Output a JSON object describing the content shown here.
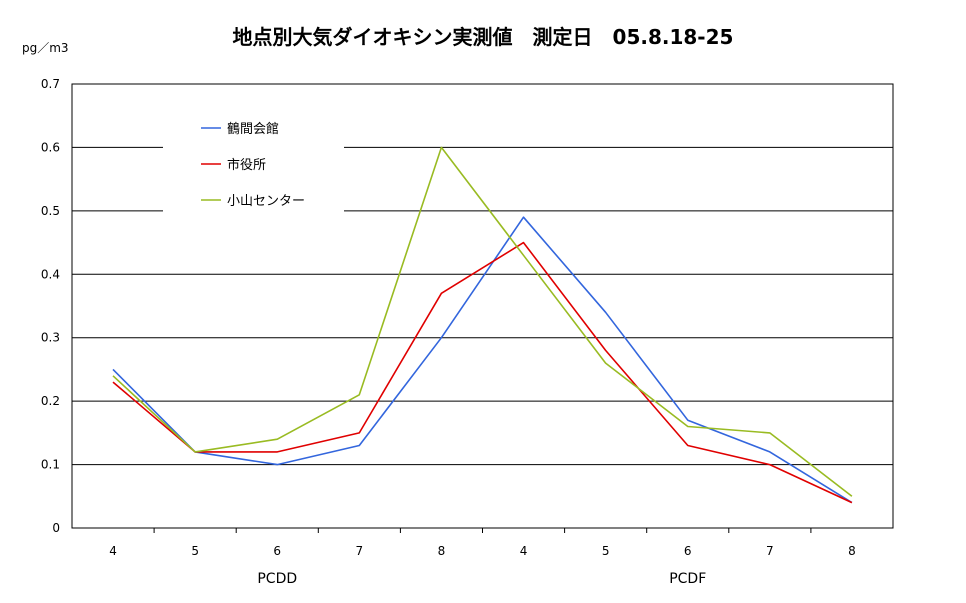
{
  "chart_data": {
    "type": "line",
    "title": "地点別大気ダイオキシン実測値　測定日　05.8.18-25",
    "unit_label": "pg／m3",
    "categories": [
      "4",
      "5",
      "6",
      "7",
      "8",
      "4",
      "5",
      "6",
      "7",
      "8"
    ],
    "groups": [
      {
        "label": "PCDD",
        "from": 0,
        "to": 4
      },
      {
        "label": "PCDF",
        "from": 5,
        "to": 9
      }
    ],
    "ylim": [
      0,
      0.7
    ],
    "yticks": [
      "0",
      "0.1",
      "0.2",
      "0.3",
      "0.4",
      "0.5",
      "0.6",
      "0.7"
    ],
    "grid": true,
    "legend_position": "top-left",
    "series": [
      {
        "name": "鶴間会館",
        "color": "#3366dd",
        "values": [
          0.25,
          0.12,
          0.1,
          0.13,
          0.3,
          0.49,
          0.34,
          0.17,
          0.12,
          0.04
        ]
      },
      {
        "name": "市役所",
        "color": "#e00000",
        "values": [
          0.23,
          0.12,
          0.12,
          0.15,
          0.37,
          0.45,
          0.28,
          0.13,
          0.1,
          0.04
        ]
      },
      {
        "name": "小山センター",
        "color": "#99bb22",
        "values": [
          0.24,
          0.12,
          0.14,
          0.21,
          0.6,
          0.43,
          0.26,
          0.16,
          0.15,
          0.05
        ]
      }
    ]
  }
}
